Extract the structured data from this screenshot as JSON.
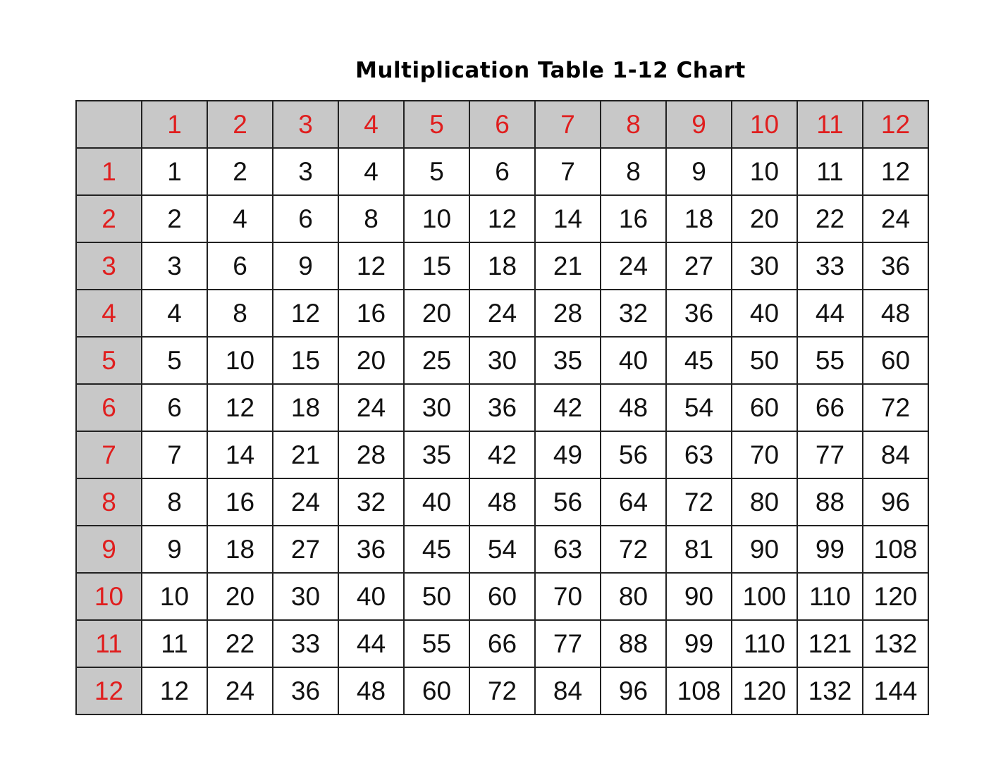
{
  "title": "Multiplication Table 1-12 Chart",
  "colors": {
    "header_bg": "#c8c8c8",
    "header_text": "#e01e1e",
    "cell_text": "#111111",
    "border": "#222222"
  },
  "column_headers": [
    "",
    "1",
    "2",
    "3",
    "4",
    "5",
    "6",
    "7",
    "8",
    "9",
    "10",
    "11",
    "12"
  ],
  "rows": [
    {
      "header": "1",
      "values": [
        "1",
        "2",
        "3",
        "4",
        "5",
        "6",
        "7",
        "8",
        "9",
        "10",
        "11",
        "12"
      ]
    },
    {
      "header": "2",
      "values": [
        "2",
        "4",
        "6",
        "8",
        "10",
        "12",
        "14",
        "16",
        "18",
        "20",
        "22",
        "24"
      ]
    },
    {
      "header": "3",
      "values": [
        "3",
        "6",
        "9",
        "12",
        "15",
        "18",
        "21",
        "24",
        "27",
        "30",
        "33",
        "36"
      ]
    },
    {
      "header": "4",
      "values": [
        "4",
        "8",
        "12",
        "16",
        "20",
        "24",
        "28",
        "32",
        "36",
        "40",
        "44",
        "48"
      ]
    },
    {
      "header": "5",
      "values": [
        "5",
        "10",
        "15",
        "20",
        "25",
        "30",
        "35",
        "40",
        "45",
        "50",
        "55",
        "60"
      ]
    },
    {
      "header": "6",
      "values": [
        "6",
        "12",
        "18",
        "24",
        "30",
        "36",
        "42",
        "48",
        "54",
        "60",
        "66",
        "72"
      ]
    },
    {
      "header": "7",
      "values": [
        "7",
        "14",
        "21",
        "28",
        "35",
        "42",
        "49",
        "56",
        "63",
        "70",
        "77",
        "84"
      ]
    },
    {
      "header": "8",
      "values": [
        "8",
        "16",
        "24",
        "32",
        "40",
        "48",
        "56",
        "64",
        "72",
        "80",
        "88",
        "96"
      ]
    },
    {
      "header": "9",
      "values": [
        "9",
        "18",
        "27",
        "36",
        "45",
        "54",
        "63",
        "72",
        "81",
        "90",
        "99",
        "108"
      ]
    },
    {
      "header": "10",
      "values": [
        "10",
        "20",
        "30",
        "40",
        "50",
        "60",
        "70",
        "80",
        "90",
        "100",
        "110",
        "120"
      ]
    },
    {
      "header": "11",
      "values": [
        "11",
        "22",
        "33",
        "44",
        "55",
        "66",
        "77",
        "88",
        "99",
        "110",
        "121",
        "132"
      ]
    },
    {
      "header": "12",
      "values": [
        "12",
        "24",
        "36",
        "48",
        "60",
        "72",
        "84",
        "96",
        "108",
        "120",
        "132",
        "144"
      ]
    }
  ]
}
